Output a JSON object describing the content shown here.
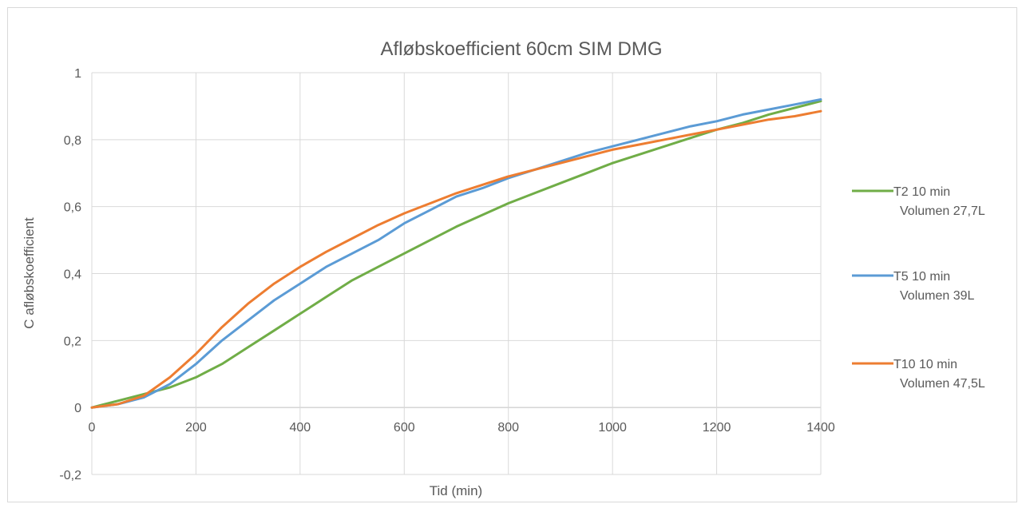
{
  "chart_data": {
    "type": "line",
    "title": "Afløbskoefficient 60cm SIM DMG",
    "xlabel": "Tid (min)",
    "ylabel": "C afløbskoefficient",
    "xlim": [
      0,
      1400
    ],
    "ylim": [
      -0.2,
      1
    ],
    "x_ticks": [
      0,
      200,
      400,
      600,
      800,
      1000,
      1200,
      1400
    ],
    "x_tick_labels": [
      "0",
      "200",
      "400",
      "600",
      "800",
      "1000",
      "1200",
      "1400"
    ],
    "y_ticks": [
      -0.2,
      0,
      0.2,
      0.4,
      0.6,
      0.8,
      1
    ],
    "y_tick_labels": [
      "-0,2",
      "0",
      "0,2",
      "0,4",
      "0,6",
      "0,8",
      "1"
    ],
    "grid": true,
    "legend_position": "right",
    "series": [
      {
        "name_lines": [
          "T2 10 min",
          "Volumen 27,7L"
        ],
        "color": "#70ad47",
        "x": [
          0,
          50,
          100,
          150,
          200,
          250,
          300,
          350,
          400,
          450,
          500,
          550,
          600,
          650,
          700,
          750,
          800,
          850,
          900,
          950,
          1000,
          1050,
          1100,
          1150,
          1200,
          1250,
          1300,
          1350,
          1400
        ],
        "y": [
          0.0,
          0.02,
          0.04,
          0.06,
          0.09,
          0.13,
          0.18,
          0.23,
          0.28,
          0.33,
          0.38,
          0.42,
          0.46,
          0.5,
          0.54,
          0.575,
          0.61,
          0.64,
          0.67,
          0.7,
          0.73,
          0.755,
          0.78,
          0.805,
          0.83,
          0.85,
          0.875,
          0.895,
          0.915
        ]
      },
      {
        "name_lines": [
          "T5 10 min",
          "Volumen 39L"
        ],
        "color": "#5b9bd5",
        "x": [
          0,
          50,
          100,
          150,
          200,
          250,
          300,
          350,
          400,
          450,
          500,
          550,
          600,
          650,
          700,
          750,
          800,
          850,
          900,
          950,
          1000,
          1050,
          1100,
          1150,
          1200,
          1250,
          1300,
          1350,
          1400
        ],
        "y": [
          0.0,
          0.01,
          0.03,
          0.07,
          0.13,
          0.2,
          0.26,
          0.32,
          0.37,
          0.42,
          0.46,
          0.5,
          0.55,
          0.59,
          0.63,
          0.655,
          0.685,
          0.71,
          0.735,
          0.76,
          0.78,
          0.8,
          0.82,
          0.84,
          0.855,
          0.875,
          0.89,
          0.905,
          0.92
        ]
      },
      {
        "name_lines": [
          "T10 10 min",
          "Volumen 47,5L"
        ],
        "color": "#ed7d31",
        "x": [
          0,
          50,
          100,
          150,
          200,
          250,
          300,
          350,
          400,
          450,
          500,
          550,
          600,
          650,
          700,
          750,
          800,
          850,
          900,
          950,
          1000,
          1050,
          1100,
          1150,
          1200,
          1250,
          1300,
          1350,
          1400
        ],
        "y": [
          0.0,
          0.01,
          0.035,
          0.09,
          0.16,
          0.24,
          0.31,
          0.37,
          0.42,
          0.465,
          0.505,
          0.545,
          0.58,
          0.61,
          0.64,
          0.665,
          0.69,
          0.71,
          0.73,
          0.75,
          0.77,
          0.785,
          0.8,
          0.815,
          0.83,
          0.845,
          0.86,
          0.87,
          0.885
        ]
      }
    ]
  }
}
